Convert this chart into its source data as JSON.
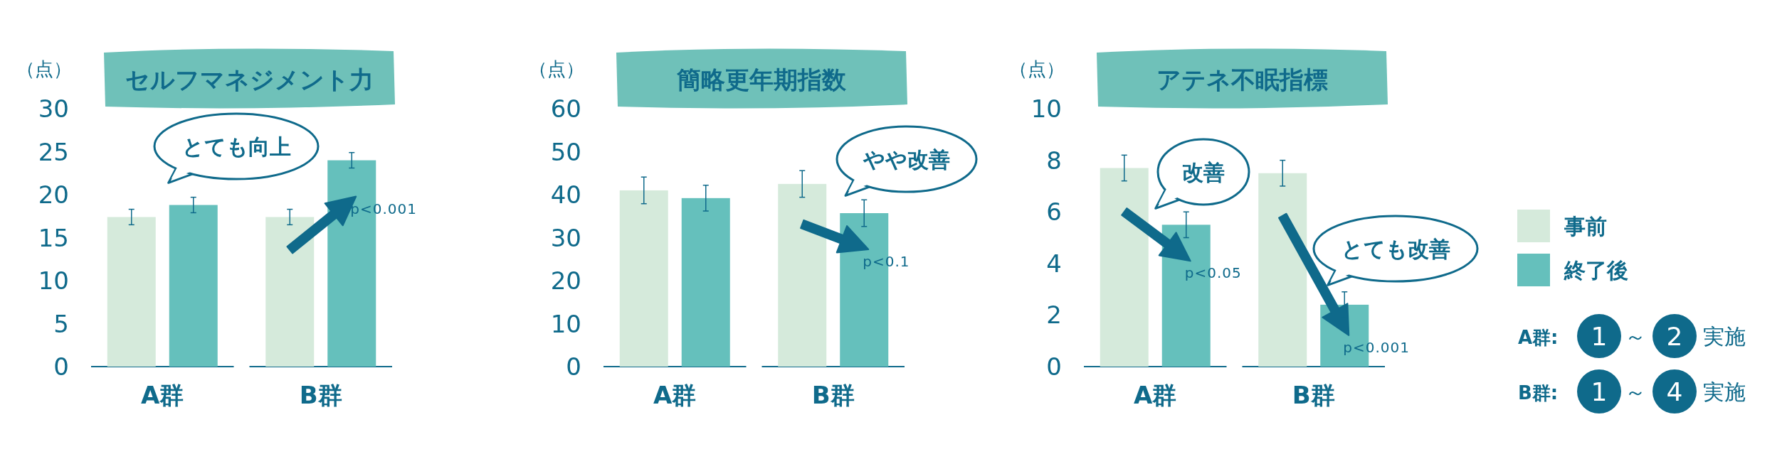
{
  "chart_data": [
    {
      "type": "bar",
      "title": "セルフマネジメント力",
      "ylabel": "（点）",
      "categories": [
        "A群",
        "B群"
      ],
      "series": [
        {
          "color": "#d5eadb",
          "values": [
            17.4,
            17.4
          ],
          "errors": [
            0.9,
            0.9
          ]
        },
        {
          "color": "#65c0bc",
          "values": [
            18.8,
            24.0
          ],
          "errors": [
            0.9,
            0.9
          ]
        }
      ],
      "ylim": [
        0,
        30
      ],
      "yticks": [
        0,
        5,
        10,
        15,
        20,
        25,
        30
      ],
      "grid": false,
      "legend": false,
      "annotations": [
        "p<0.001",
        "とても向上"
      ]
    },
    {
      "type": "bar",
      "title": "簡略更年期指数",
      "ylabel": "（点）",
      "categories": [
        "A群",
        "B群"
      ],
      "series": [
        {
          "color": "#d5eadb",
          "values": [
            41.0,
            42.5
          ],
          "errors": [
            3.1,
            3.1
          ]
        },
        {
          "color": "#65c0bc",
          "values": [
            39.2,
            35.7
          ],
          "errors": [
            3.0,
            3.1
          ]
        }
      ],
      "ylim": [
        0,
        60
      ],
      "yticks": [
        0,
        10,
        20,
        30,
        40,
        50,
        60
      ],
      "grid": false,
      "legend": false,
      "annotations": [
        "p<0.1",
        "やや改善"
      ]
    },
    {
      "type": "bar",
      "title": "アテネ不眠指標",
      "ylabel": "（点）",
      "categories": [
        "A群",
        "B群"
      ],
      "series": [
        {
          "name": "事前",
          "color": "#d5eadb",
          "values": [
            7.7,
            7.5
          ],
          "errors": [
            0.5,
            0.5
          ]
        },
        {
          "name": "終了後",
          "color": "#65c0bc",
          "values": [
            5.5,
            2.4
          ],
          "errors": [
            0.5,
            0.5
          ]
        }
      ],
      "ylim": [
        0,
        10
      ],
      "yticks": [
        0,
        2,
        4,
        6,
        8,
        10
      ],
      "grid": false,
      "legend": "right",
      "annotations": [
        "p<0.05",
        "改善",
        "p<0.001",
        "とても改善"
      ]
    },
    {
      "type": "other",
      "annotations": [
        "A群:",
        "1",
        "～",
        "2",
        "実施",
        "B群:",
        "1",
        "～",
        "4",
        "実施"
      ]
    }
  ]
}
